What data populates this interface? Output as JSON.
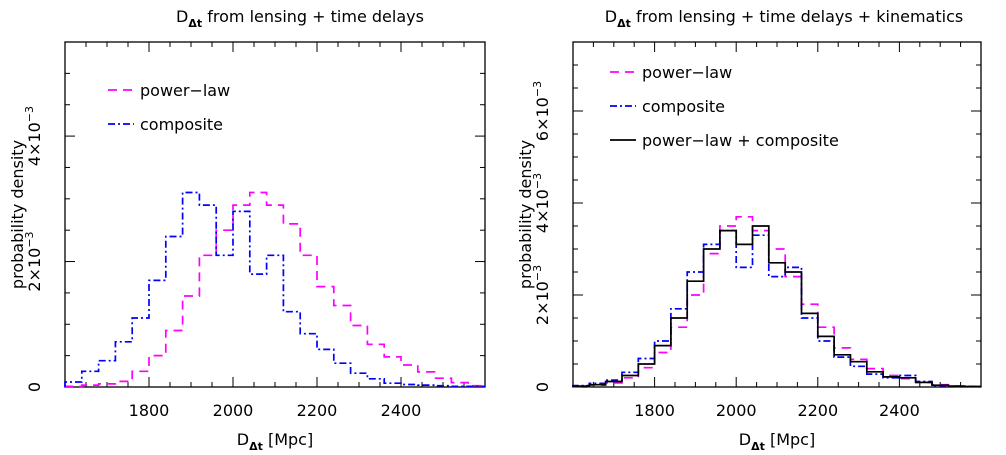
{
  "chart_data": [
    {
      "type": "step-histogram",
      "title": "D_Δt from lensing + time delays",
      "title_main": "D",
      "title_sub": "Δt",
      "title_rest": " from lensing + time delays",
      "xlabel_main": "D",
      "xlabel_sub": "Δt",
      "xlabel_rest": " [Mpc]",
      "ylabel": "probability density",
      "xlim": [
        1600,
        2600
      ],
      "ylim": [
        0,
        0.0055
      ],
      "bin_edges": [
        1600,
        1640,
        1680,
        1720,
        1760,
        1800,
        1840,
        1880,
        1920,
        1960,
        2000,
        2040,
        2080,
        2120,
        2160,
        2200,
        2240,
        2280,
        2320,
        2360,
        2400,
        2440,
        2480,
        2520,
        2560,
        2600
      ],
      "x_ticks": [
        {
          "value": 1800,
          "label": "1800"
        },
        {
          "value": 2000,
          "label": "2000"
        },
        {
          "value": 2200,
          "label": "2200"
        },
        {
          "value": 2400,
          "label": "2400"
        }
      ],
      "y_ticks": [
        {
          "value": 0,
          "base": "0",
          "exp": ""
        },
        {
          "value": 0.002,
          "base": "2×10",
          "exp": "−3"
        },
        {
          "value": 0.004,
          "base": "4×10",
          "exp": "−3"
        }
      ],
      "legend_position": "top-left",
      "series": [
        {
          "name": "power−law",
          "color": "#ff00ff",
          "dash": "9,6",
          "values": [
            1e-05,
            3e-05,
            5e-05,
            9e-05,
            0.00025,
            0.0005,
            0.0009,
            0.00145,
            0.0021,
            0.0025,
            0.0029,
            0.0031,
            0.0029,
            0.0026,
            0.0021,
            0.0016,
            0.0013,
            0.00098,
            0.00068,
            0.00048,
            0.00035,
            0.00024,
            0.00014,
            7e-05,
            2e-05
          ]
        },
        {
          "name": "composite",
          "color": "#0000ff",
          "dash": "7,3,2,3",
          "values": [
            8e-05,
            0.00025,
            0.00042,
            0.00072,
            0.0011,
            0.0017,
            0.0024,
            0.0031,
            0.0029,
            0.0021,
            0.0028,
            0.0018,
            0.0021,
            0.0012,
            0.00085,
            0.0006,
            0.00038,
            0.00022,
            0.00013,
            6e-05,
            4e-05,
            3e-05,
            2e-05,
            1e-05,
            1e-05
          ]
        }
      ]
    },
    {
      "type": "step-histogram",
      "title": "D_Δt from lensing + time delays + kinematics",
      "title_main": "D",
      "title_sub": "Δt",
      "title_rest": " from lensing + time delays + kinematics",
      "xlabel_main": "D",
      "xlabel_sub": "Δt",
      "xlabel_rest": " [Mpc]",
      "ylabel": "probability density",
      "xlim": [
        1600,
        2600
      ],
      "ylim": [
        0,
        0.0075
      ],
      "bin_edges": [
        1600,
        1640,
        1680,
        1720,
        1760,
        1800,
        1840,
        1880,
        1920,
        1960,
        2000,
        2040,
        2080,
        2120,
        2160,
        2200,
        2240,
        2280,
        2320,
        2360,
        2400,
        2440,
        2480,
        2520,
        2560,
        2600
      ],
      "x_ticks": [
        {
          "value": 1800,
          "label": "1800"
        },
        {
          "value": 2000,
          "label": "2000"
        },
        {
          "value": 2200,
          "label": "2200"
        },
        {
          "value": 2400,
          "label": "2400"
        }
      ],
      "y_ticks": [
        {
          "value": 0,
          "base": "0",
          "exp": ""
        },
        {
          "value": 0.002,
          "base": "2×10",
          "exp": "−3"
        },
        {
          "value": 0.004,
          "base": "4×10",
          "exp": "−3"
        },
        {
          "value": 0.006,
          "base": "6×10",
          "exp": "−3"
        }
      ],
      "legend_position": "top-left",
      "series": [
        {
          "name": "power−law",
          "color": "#ff00ff",
          "dash": "9,6",
          "values": [
            1e-05,
            4e-05,
            9e-05,
            0.0002,
            0.00042,
            0.00075,
            0.0013,
            0.002,
            0.0029,
            0.0035,
            0.0037,
            0.0034,
            0.003,
            0.0024,
            0.0018,
            0.0013,
            0.00085,
            0.0006,
            0.0004,
            0.00025,
            0.00018,
            0.0001,
            5e-05,
            2e-05,
            1e-05
          ]
        },
        {
          "name": "composite",
          "color": "#0000ff",
          "dash": "7,3,2,3",
          "values": [
            3e-05,
            8e-05,
            0.00015,
            0.00032,
            0.00062,
            0.001,
            0.0017,
            0.0025,
            0.0031,
            0.0034,
            0.0026,
            0.0033,
            0.0024,
            0.0026,
            0.0015,
            0.001,
            0.00065,
            0.00045,
            0.00028,
            0.0002,
            0.00025,
            0.00012,
            3e-05,
            1e-05,
            1e-05
          ]
        },
        {
          "name": "power−law + composite",
          "color": "#000000",
          "dash": "",
          "values": [
            2e-05,
            5e-05,
            0.00012,
            0.00025,
            0.0005,
            0.0009,
            0.0015,
            0.0023,
            0.003,
            0.0034,
            0.0031,
            0.0035,
            0.0027,
            0.0025,
            0.0016,
            0.0011,
            0.0007,
            0.00055,
            0.00033,
            0.00022,
            0.0002,
            0.0001,
            4e-05,
            2e-05,
            1e-05
          ]
        }
      ]
    }
  ]
}
